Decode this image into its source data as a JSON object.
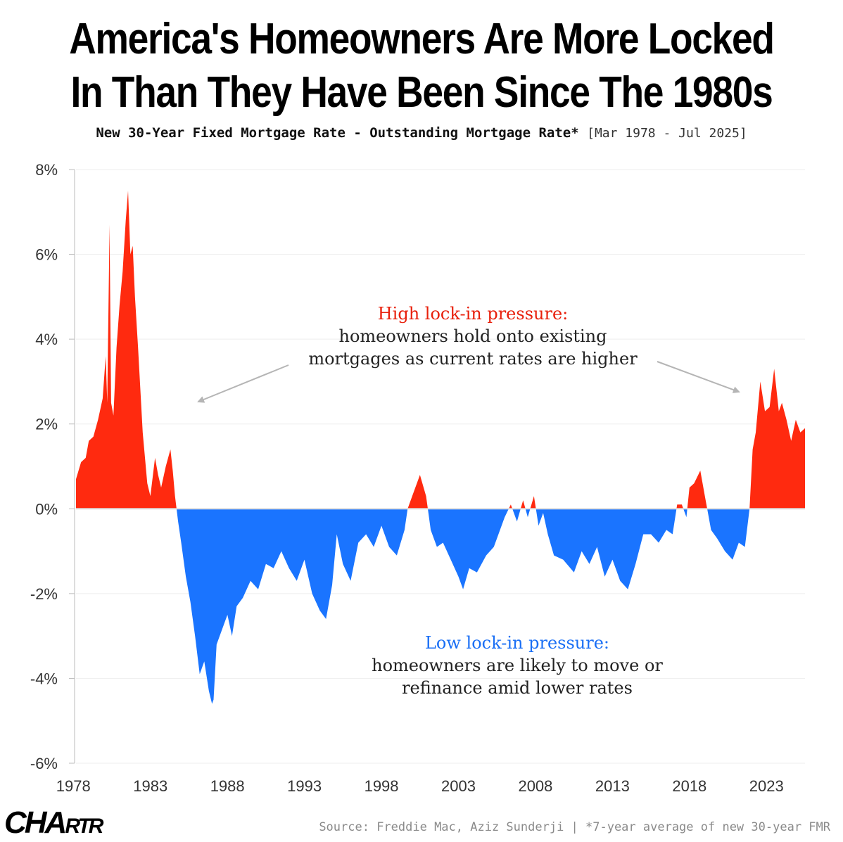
{
  "title_line1": "America's Homeowners Are More Locked",
  "title_line2": "In Than They Have Been Since The 1980s",
  "subtitle_main": "New 30-Year Fixed Mortgage Rate - Outstanding Mortgage Rate*",
  "subtitle_range": "[Mar 1978 - Jul 2025]",
  "annotations": {
    "high_head": "High lock-in pressure:",
    "high_line1": "homeowners hold onto existing",
    "high_line2": "mortgages as current rates are higher",
    "low_head": "Low lock-in pressure:",
    "low_line1": "homeowners are likely to move or",
    "low_line2": "refinance amid lower rates"
  },
  "logo": {
    "main": "CHA",
    "small": "RTR"
  },
  "source": "Source: Freddie Mac, Aziz Sunderji | *7-year average of new 30-year FMR",
  "colors": {
    "positive": "#ff2a0f",
    "negative": "#1a74ff",
    "grid": "#eeeeee",
    "axis": "#bbbbbb"
  },
  "chart_data": {
    "type": "area",
    "xlim": [
      1978.17,
      2025.5
    ],
    "ylim": [
      -6,
      8
    ],
    "y_ticks": [
      {
        "value": 8,
        "label": "8%"
      },
      {
        "value": 6,
        "label": "6%"
      },
      {
        "value": 4,
        "label": "4%"
      },
      {
        "value": 2,
        "label": "2%"
      },
      {
        "value": 0,
        "label": "0%"
      },
      {
        "value": -2,
        "label": "-2%"
      },
      {
        "value": -4,
        "label": "-4%"
      },
      {
        "value": -6,
        "label": "-6%"
      }
    ],
    "x_ticks": [
      {
        "value": 1978,
        "label": "1978"
      },
      {
        "value": 1983,
        "label": "1983"
      },
      {
        "value": 1988,
        "label": "1988"
      },
      {
        "value": 1993,
        "label": "1993"
      },
      {
        "value": 1998,
        "label": "1998"
      },
      {
        "value": 2003,
        "label": "2003"
      },
      {
        "value": 2008,
        "label": "2008"
      },
      {
        "value": 2013,
        "label": "2013"
      },
      {
        "value": 2018,
        "label": "2018"
      },
      {
        "value": 2023,
        "label": "2023"
      }
    ],
    "x": [
      1978.17,
      1978.5,
      1978.8,
      1979.0,
      1979.3,
      1979.6,
      1979.9,
      1980.1,
      1980.2,
      1980.35,
      1980.45,
      1980.6,
      1980.8,
      1981.0,
      1981.2,
      1981.4,
      1981.55,
      1981.7,
      1981.85,
      1982.0,
      1982.2,
      1982.5,
      1982.8,
      1983.0,
      1983.3,
      1983.5,
      1983.7,
      1984.0,
      1984.3,
      1984.45,
      1984.6,
      1984.8,
      1985.0,
      1985.3,
      1985.6,
      1985.9,
      1986.2,
      1986.5,
      1986.8,
      1987.0,
      1987.1,
      1987.3,
      1987.6,
      1988.0,
      1988.3,
      1988.6,
      1989.0,
      1989.5,
      1990.0,
      1990.5,
      1991.0,
      1991.5,
      1992.0,
      1992.5,
      1993.0,
      1993.5,
      1994.0,
      1994.4,
      1994.8,
      1995.1,
      1995.5,
      1996.0,
      1996.5,
      1997.0,
      1997.5,
      1998.0,
      1998.5,
      1999.0,
      1999.5,
      1999.7,
      2000.0,
      2000.5,
      2000.9,
      2001.2,
      2001.6,
      2002.0,
      2002.5,
      2003.0,
      2003.3,
      2003.7,
      2004.2,
      2004.8,
      2005.3,
      2005.7,
      2006.0,
      2006.4,
      2006.8,
      2007.2,
      2007.5,
      2007.9,
      2008.2,
      2008.5,
      2008.8,
      2009.2,
      2009.8,
      2010.5,
      2011.0,
      2011.5,
      2012.0,
      2012.5,
      2013.0,
      2013.5,
      2014.0,
      2014.5,
      2015.0,
      2015.5,
      2016.0,
      2016.5,
      2016.9,
      2017.2,
      2017.5,
      2017.8,
      2018.0,
      2018.3,
      2018.7,
      2019.0,
      2019.4,
      2019.8,
      2020.3,
      2020.8,
      2021.2,
      2021.6,
      2021.9,
      2022.1,
      2022.3,
      2022.6,
      2022.9,
      2023.2,
      2023.5,
      2023.8,
      2024.0,
      2024.3,
      2024.6,
      2024.9,
      2025.2,
      2025.5
    ],
    "y": [
      0.7,
      1.1,
      1.2,
      1.6,
      1.7,
      2.1,
      2.6,
      3.6,
      2.5,
      6.7,
      2.5,
      2.2,
      3.8,
      4.8,
      5.6,
      6.8,
      7.5,
      6.0,
      6.2,
      5.0,
      3.8,
      1.8,
      0.6,
      0.3,
      1.2,
      0.8,
      0.5,
      1.0,
      1.4,
      0.9,
      0.3,
      -0.3,
      -0.8,
      -1.6,
      -2.2,
      -3.0,
      -3.9,
      -3.6,
      -4.3,
      -4.6,
      -4.5,
      -3.2,
      -2.9,
      -2.5,
      -3.0,
      -2.3,
      -2.1,
      -1.7,
      -1.9,
      -1.3,
      -1.4,
      -1.0,
      -1.4,
      -1.7,
      -1.2,
      -2.0,
      -2.4,
      -2.6,
      -1.8,
      -0.6,
      -1.3,
      -1.7,
      -0.8,
      -0.6,
      -0.9,
      -0.4,
      -0.9,
      -1.1,
      -0.5,
      0.0,
      0.3,
      0.8,
      0.3,
      -0.5,
      -0.9,
      -0.8,
      -1.2,
      -1.6,
      -1.9,
      -1.4,
      -1.5,
      -1.1,
      -0.9,
      -0.5,
      -0.2,
      0.1,
      -0.3,
      0.2,
      -0.2,
      0.3,
      -0.4,
      -0.1,
      -0.6,
      -1.1,
      -1.2,
      -1.5,
      -1.0,
      -1.3,
      -0.9,
      -1.6,
      -1.2,
      -1.7,
      -1.9,
      -1.3,
      -0.6,
      -0.6,
      -0.8,
      -0.5,
      -0.6,
      0.1,
      0.1,
      -0.2,
      0.5,
      0.6,
      0.9,
      0.3,
      -0.5,
      -0.7,
      -1.0,
      -1.2,
      -0.8,
      -0.9,
      0.0,
      1.4,
      1.8,
      3.0,
      2.3,
      2.4,
      3.3,
      2.3,
      2.5,
      2.1,
      1.6,
      2.1,
      1.8,
      1.9
    ]
  }
}
